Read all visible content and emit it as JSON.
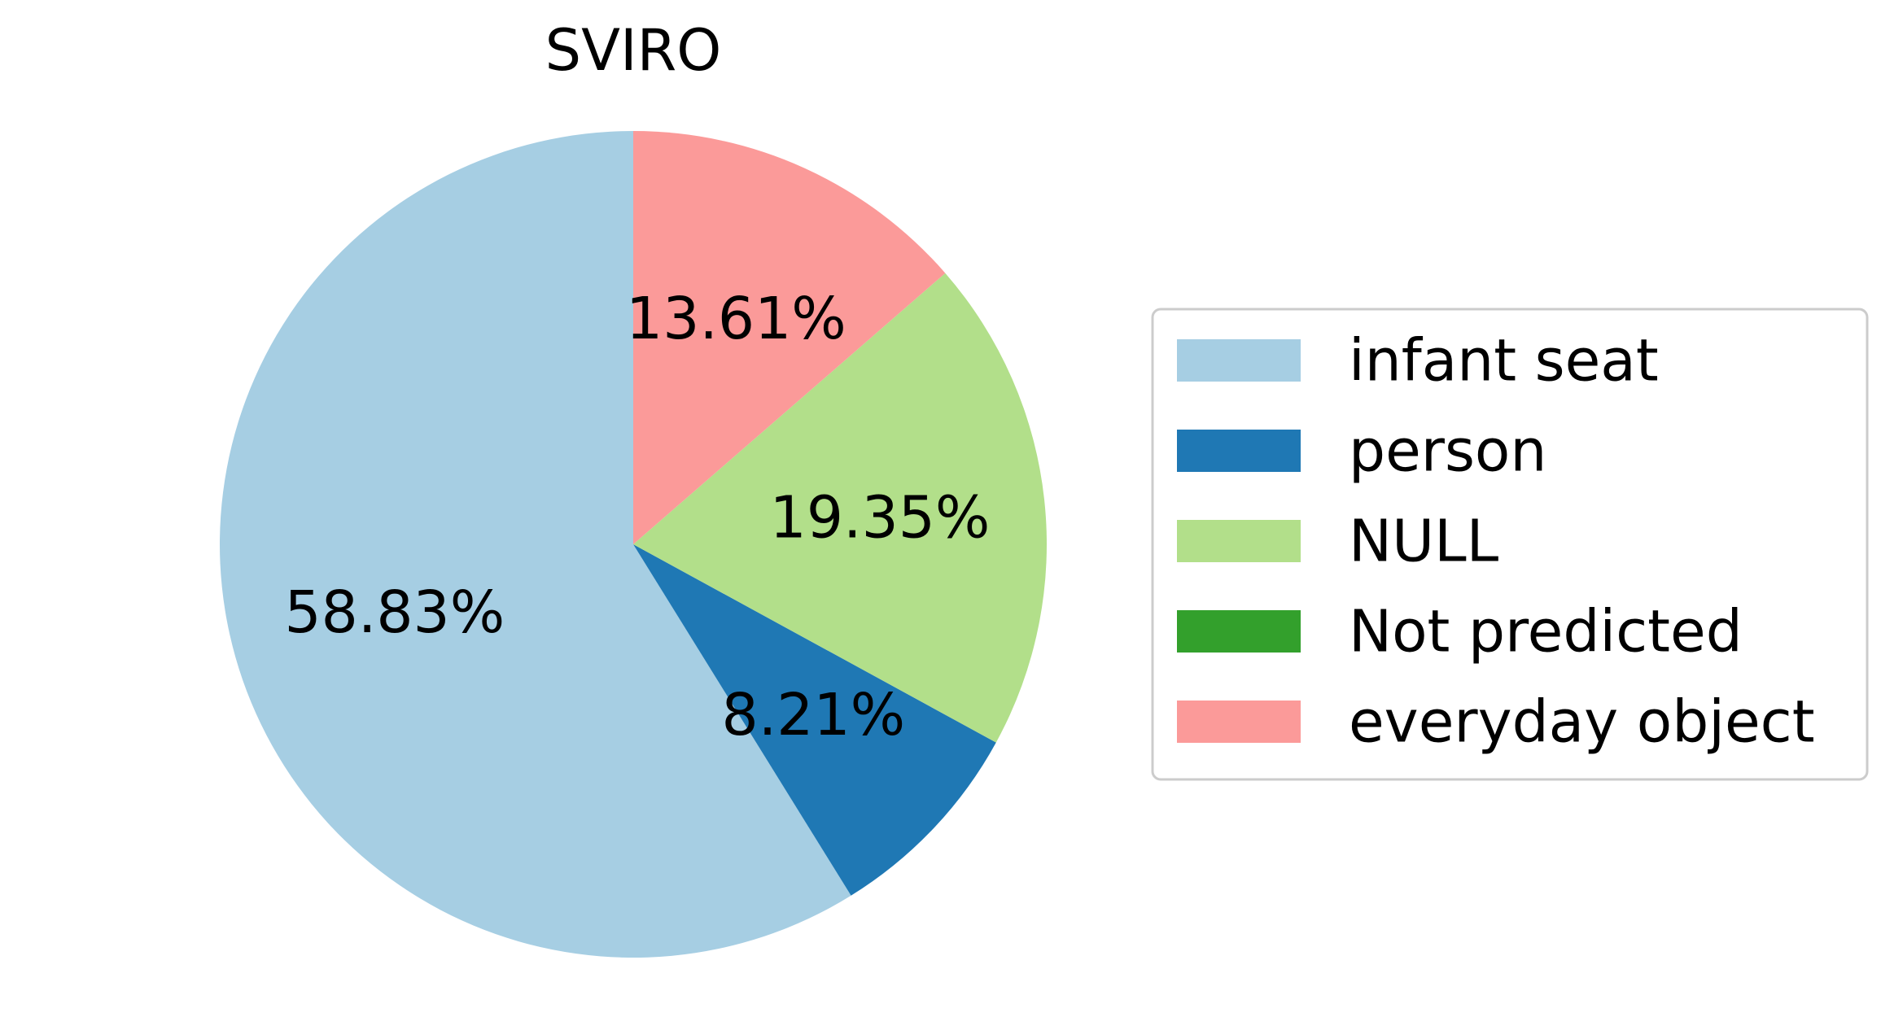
{
  "chart_data": {
    "type": "pie",
    "title": "SVIRO",
    "start_angle_deg": 90,
    "direction": "counterclockwise",
    "legend_placement": "center-right",
    "slices": [
      {
        "label": "infant seat",
        "value": 58.83,
        "pct_label": "58.83%",
        "color": "#a6cee3"
      },
      {
        "label": "person",
        "value": 8.21,
        "pct_label": "8.21%",
        "color": "#1f78b4"
      },
      {
        "label": "NULL",
        "value": 19.35,
        "pct_label": "19.35%",
        "color": "#b2df8a"
      },
      {
        "label": "Not predicted",
        "value": 0,
        "pct_label": "",
        "color": "#33a02c"
      },
      {
        "label": "everyday object",
        "value": 13.61,
        "pct_label": "13.61%",
        "color": "#fb9a99"
      }
    ]
  }
}
